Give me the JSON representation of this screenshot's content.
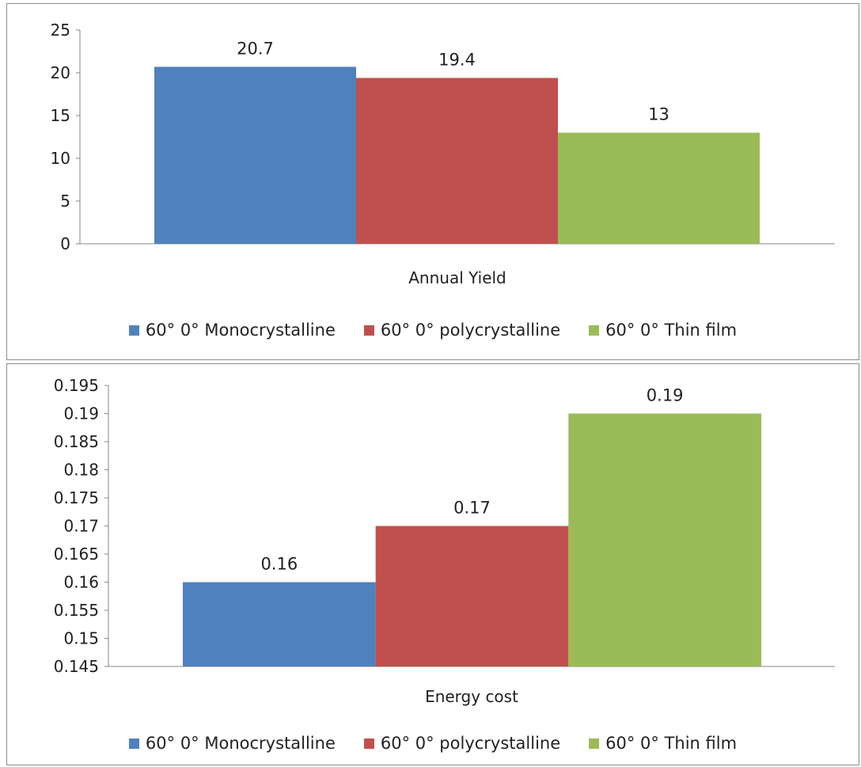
{
  "colors": {
    "mono": "#4f81bd",
    "poly": "#c0504d",
    "thin": "#9bbb59"
  },
  "chart_data": [
    {
      "type": "bar",
      "xlabel": "Annual Yield",
      "ylim": [
        0,
        25
      ],
      "yticks": [
        "0",
        "5",
        "10",
        "15",
        "20",
        "25"
      ],
      "ytick_values": [
        0,
        5,
        10,
        15,
        20,
        25
      ],
      "series": [
        {
          "name": "60°  0°  Monocrystalline",
          "values": [
            20.7
          ],
          "label": "20.7",
          "color": "#4f81bd"
        },
        {
          "name": "60°  0°  polycrystalline",
          "values": [
            19.4
          ],
          "label": "19.4",
          "color": "#c0504d"
        },
        {
          "name": "60°  0°  Thin film",
          "values": [
            13
          ],
          "label": "13",
          "color": "#9bbb59"
        }
      ],
      "legend": "bottom",
      "grid": false
    },
    {
      "type": "bar",
      "xlabel": "Energy cost",
      "ylim": [
        0.145,
        0.195
      ],
      "yticks": [
        "0.145",
        "0.15",
        "0.155",
        "0.16",
        "0.165",
        "0.17",
        "0.175",
        "0.18",
        "0.185",
        "0.19",
        "0.195"
      ],
      "ytick_values": [
        0.145,
        0.15,
        0.155,
        0.16,
        0.165,
        0.17,
        0.175,
        0.18,
        0.185,
        0.19,
        0.195
      ],
      "series": [
        {
          "name": "60°  0°  Monocrystalline",
          "values": [
            0.16
          ],
          "label": "0.16",
          "color": "#4f81bd"
        },
        {
          "name": "60°  0°  polycrystalline",
          "values": [
            0.17
          ],
          "label": "0.17",
          "color": "#c0504d"
        },
        {
          "name": "60°  0°  Thin film",
          "values": [
            0.19
          ],
          "label": "0.19",
          "color": "#9bbb59"
        }
      ],
      "legend": "bottom",
      "grid": false
    }
  ]
}
